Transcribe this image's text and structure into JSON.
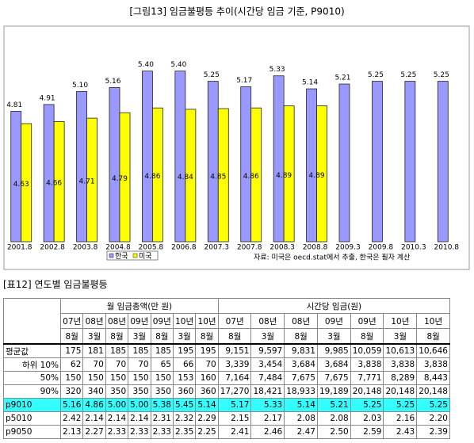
{
  "chart_data": {
    "type": "bar",
    "title": "[그림13] 임금불평등 추이(시간당 임금 기준, P9010)",
    "categories": [
      "2001.8",
      "2002.8",
      "2003.8",
      "2004.8",
      "2005.8",
      "2006.8",
      "2007.3",
      "2007.8",
      "2008.3",
      "2008.8",
      "2009.3",
      "2009.8",
      "2010.3",
      "2010.8"
    ],
    "series": [
      {
        "name": "한국",
        "color": "#9999ff",
        "values": [
          4.81,
          4.91,
          5.1,
          5.16,
          5.4,
          5.4,
          5.25,
          5.17,
          5.33,
          5.14,
          5.21,
          5.25,
          5.25,
          5.25
        ],
        "value_labels": [
          "4.81",
          "4.91",
          "5.10",
          "5.16",
          "5.40",
          "5.40",
          "5.25",
          "5.17",
          "5.33",
          "5.14",
          "5.21",
          "5.25",
          "5.25",
          "5.25"
        ]
      },
      {
        "name": "미국",
        "color": "#ffff00",
        "values": [
          4.63,
          4.66,
          4.71,
          4.79,
          4.86,
          4.84,
          4.85,
          4.86,
          4.89,
          4.89,
          null,
          null,
          null,
          null
        ]
      }
    ],
    "ylim": [
      2.9,
      6.0
    ],
    "legend": "bottom-left",
    "note": "자료: 미국은 oecd.stat에서 추출, 한국은 필자 계산"
  },
  "table": {
    "title": "[표12] 연도별 임금불평등",
    "groups": [
      "월 임금총액(만 원)",
      "시간당 임금(원)"
    ],
    "years": [
      "07년",
      "08년",
      "08년",
      "09년",
      "09년",
      "10년",
      "10년",
      "07년",
      "08년",
      "08년",
      "09년",
      "09년",
      "10년",
      "10년"
    ],
    "months": [
      "8월",
      "3월",
      "8월",
      "3월",
      "8월",
      "3월",
      "8월",
      "8월",
      "3월",
      "8월",
      "3월",
      "8월",
      "3월",
      "8월"
    ],
    "rows": [
      {
        "label": "평균값",
        "cells": [
          "175",
          "181",
          "185",
          "185",
          "185",
          "195",
          "195",
          "9,151",
          "9,597",
          "9,831",
          "9,985",
          "10,059",
          "10,613",
          "10,646"
        ]
      },
      {
        "label": "하위 10%",
        "cells": [
          "62",
          "70",
          "70",
          "70",
          "65",
          "66",
          "70",
          "3,339",
          "3,454",
          "3,684",
          "3,684",
          "3,838",
          "3,838",
          "3,838"
        ]
      },
      {
        "label": "50%",
        "cells": [
          "150",
          "150",
          "150",
          "150",
          "150",
          "153",
          "160",
          "7,164",
          "7,484",
          "7,675",
          "7,675",
          "7,771",
          "8,289",
          "8,443"
        ]
      },
      {
        "label": "90%",
        "cells": [
          "320",
          "340",
          "350",
          "350",
          "350",
          "360",
          "360",
          "17,270",
          "18,421",
          "18,933",
          "19,189",
          "20,148",
          "20,148",
          "20,148"
        ]
      },
      {
        "label": "p9010",
        "cells": [
          "5.16",
          "4.86",
          "5.00",
          "5.00",
          "5.38",
          "5.45",
          "5.14",
          "5.17",
          "5.33",
          "5.14",
          "5.21",
          "5.25",
          "5.25",
          "5.25"
        ]
      },
      {
        "label": "p5010",
        "cells": [
          "2.42",
          "2.14",
          "2.14",
          "2.14",
          "2.31",
          "2.32",
          "2.29",
          "2.15",
          "2.17",
          "2.08",
          "2.08",
          "2.03",
          "2.16",
          "2.20"
        ]
      },
      {
        "label": "p9050",
        "cells": [
          "2.13",
          "2.27",
          "2.33",
          "2.33",
          "2.33",
          "2.35",
          "2.25",
          "2.41",
          "2.46",
          "2.47",
          "2.50",
          "2.59",
          "2.43",
          "2.39"
        ]
      }
    ]
  }
}
